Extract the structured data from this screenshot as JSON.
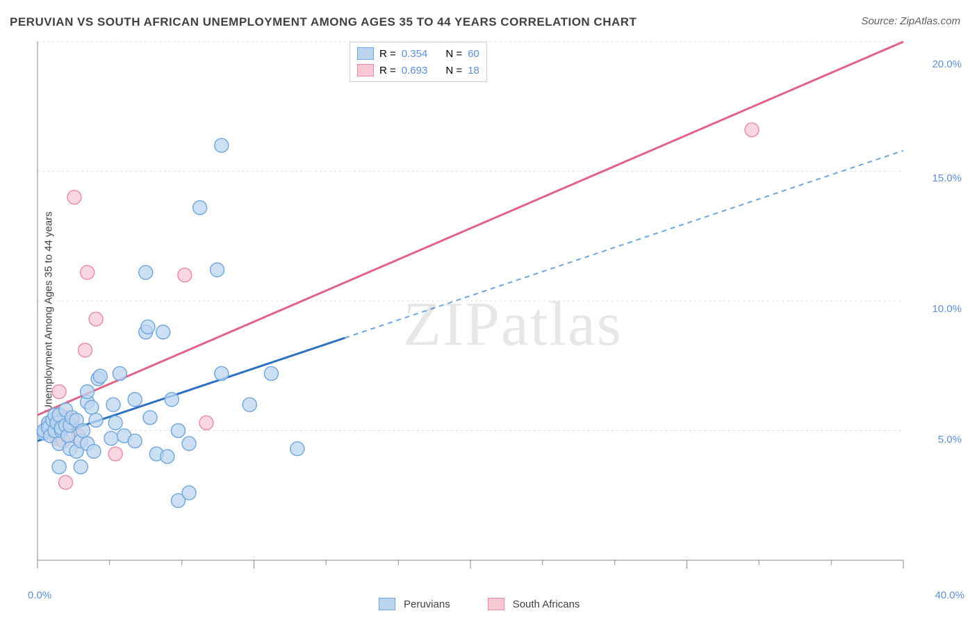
{
  "title": "PERUVIAN VS SOUTH AFRICAN UNEMPLOYMENT AMONG AGES 35 TO 44 YEARS CORRELATION CHART",
  "source": "Source: ZipAtlas.com",
  "yaxis_label": "Unemployment Among Ages 35 to 44 years",
  "watermark": "ZIPatlas",
  "chart": {
    "type": "scatter",
    "background_color": "#ffffff",
    "grid_color": "#dcdcdc",
    "axis_color": "#888888",
    "xlim": [
      0,
      40
    ],
    "ylim": [
      0,
      20
    ],
    "x_ticks": [
      0,
      10,
      20,
      30,
      40
    ],
    "x_tick_labels": [
      "0.0%",
      "",
      "",
      "",
      "40.0%"
    ],
    "x_tick_label_color": "#5b8fd6",
    "y_gridlines": [
      5,
      10,
      15,
      20
    ],
    "y_tick_labels": [
      "5.0%",
      "10.0%",
      "15.0%",
      "20.0%"
    ],
    "y_tick_label_color": "#5b8fd6",
    "x_minor_ticks": [
      3.33,
      6.67,
      13.33,
      16.67,
      23.33,
      26.67,
      33.33,
      36.67
    ],
    "series": [
      {
        "name": "Peruvians",
        "marker_color_fill": "#bcd5ef",
        "marker_color_stroke": "#6ea5dd",
        "marker_radius": 10,
        "line_color_solid": "#2f6fc0",
        "line_color_dash": "#6ea5dd",
        "R": "0.354",
        "N": "60",
        "regression": {
          "x1": 0,
          "y1": 4.6,
          "x2": 40,
          "y2": 15.8,
          "solid_until_x": 14.2
        },
        "points": [
          [
            0.3,
            4.9
          ],
          [
            0.3,
            5.0
          ],
          [
            0.5,
            5.2
          ],
          [
            0.5,
            5.3
          ],
          [
            0.5,
            5.1
          ],
          [
            0.6,
            4.8
          ],
          [
            0.7,
            5.4
          ],
          [
            0.8,
            5.0
          ],
          [
            0.8,
            5.6
          ],
          [
            0.9,
            5.3
          ],
          [
            1.0,
            4.5
          ],
          [
            1.0,
            5.6
          ],
          [
            1.1,
            5.0
          ],
          [
            1.1,
            5.1
          ],
          [
            1.0,
            3.6
          ],
          [
            1.3,
            5.2
          ],
          [
            1.3,
            5.8
          ],
          [
            1.4,
            4.8
          ],
          [
            1.5,
            5.2
          ],
          [
            1.5,
            4.3
          ],
          [
            1.6,
            5.5
          ],
          [
            1.8,
            4.2
          ],
          [
            1.8,
            5.4
          ],
          [
            2.0,
            4.6
          ],
          [
            2.0,
            3.6
          ],
          [
            2.1,
            5.0
          ],
          [
            2.3,
            4.5
          ],
          [
            2.3,
            6.1
          ],
          [
            2.3,
            6.5
          ],
          [
            2.5,
            5.9
          ],
          [
            2.6,
            4.2
          ],
          [
            2.7,
            5.4
          ],
          [
            2.8,
            7.0
          ],
          [
            2.9,
            7.1
          ],
          [
            3.4,
            4.7
          ],
          [
            3.5,
            6.0
          ],
          [
            3.6,
            5.3
          ],
          [
            3.8,
            7.2
          ],
          [
            4.0,
            4.8
          ],
          [
            4.5,
            4.6
          ],
          [
            4.5,
            6.2
          ],
          [
            5.0,
            8.8
          ],
          [
            5.1,
            9.0
          ],
          [
            5.0,
            11.1
          ],
          [
            5.2,
            5.5
          ],
          [
            5.5,
            4.1
          ],
          [
            5.8,
            8.8
          ],
          [
            6.0,
            4.0
          ],
          [
            6.2,
            6.2
          ],
          [
            6.5,
            5.0
          ],
          [
            6.5,
            2.3
          ],
          [
            7.0,
            2.6
          ],
          [
            7.0,
            4.5
          ],
          [
            7.5,
            13.6
          ],
          [
            8.3,
            11.2
          ],
          [
            8.5,
            7.2
          ],
          [
            8.5,
            16.0
          ],
          [
            9.8,
            6.0
          ],
          [
            10.8,
            7.2
          ],
          [
            12.0,
            4.3
          ]
        ]
      },
      {
        "name": "South Africans",
        "marker_color_fill": "#f7c9d5",
        "marker_color_stroke": "#e889a4",
        "marker_radius": 10,
        "line_color_solid": "#e06287",
        "R": "0.693",
        "N": "18",
        "regression": {
          "x1": 0,
          "y1": 5.6,
          "x2": 40,
          "y2": 20.0
        },
        "points": [
          [
            0.4,
            5.0
          ],
          [
            0.5,
            5.2
          ],
          [
            0.8,
            5.4
          ],
          [
            0.9,
            4.7
          ],
          [
            1.0,
            6.5
          ],
          [
            1.2,
            4.6
          ],
          [
            1.3,
            5.5
          ],
          [
            1.3,
            3.0
          ],
          [
            1.6,
            5.4
          ],
          [
            1.7,
            14.0
          ],
          [
            1.9,
            4.8
          ],
          [
            2.2,
            8.1
          ],
          [
            2.3,
            11.1
          ],
          [
            2.7,
            9.3
          ],
          [
            3.6,
            4.1
          ],
          [
            6.8,
            11.0
          ],
          [
            7.8,
            5.3
          ],
          [
            33.0,
            16.6
          ]
        ]
      }
    ],
    "stats_legend": {
      "border_color": "#d0d0d0",
      "bg_color": "#ffffff",
      "R_label": "R =",
      "N_label": "N =",
      "value_color": "#5b8fd6"
    },
    "bottom_legend": [
      {
        "label": "Peruvians",
        "fill": "#bcd5ef",
        "stroke": "#6ea5dd"
      },
      {
        "label": "South Africans",
        "fill": "#f7c9d5",
        "stroke": "#e889a4"
      }
    ],
    "label_fontsize": 15,
    "title_fontsize": 17,
    "title_color": "#414141"
  }
}
